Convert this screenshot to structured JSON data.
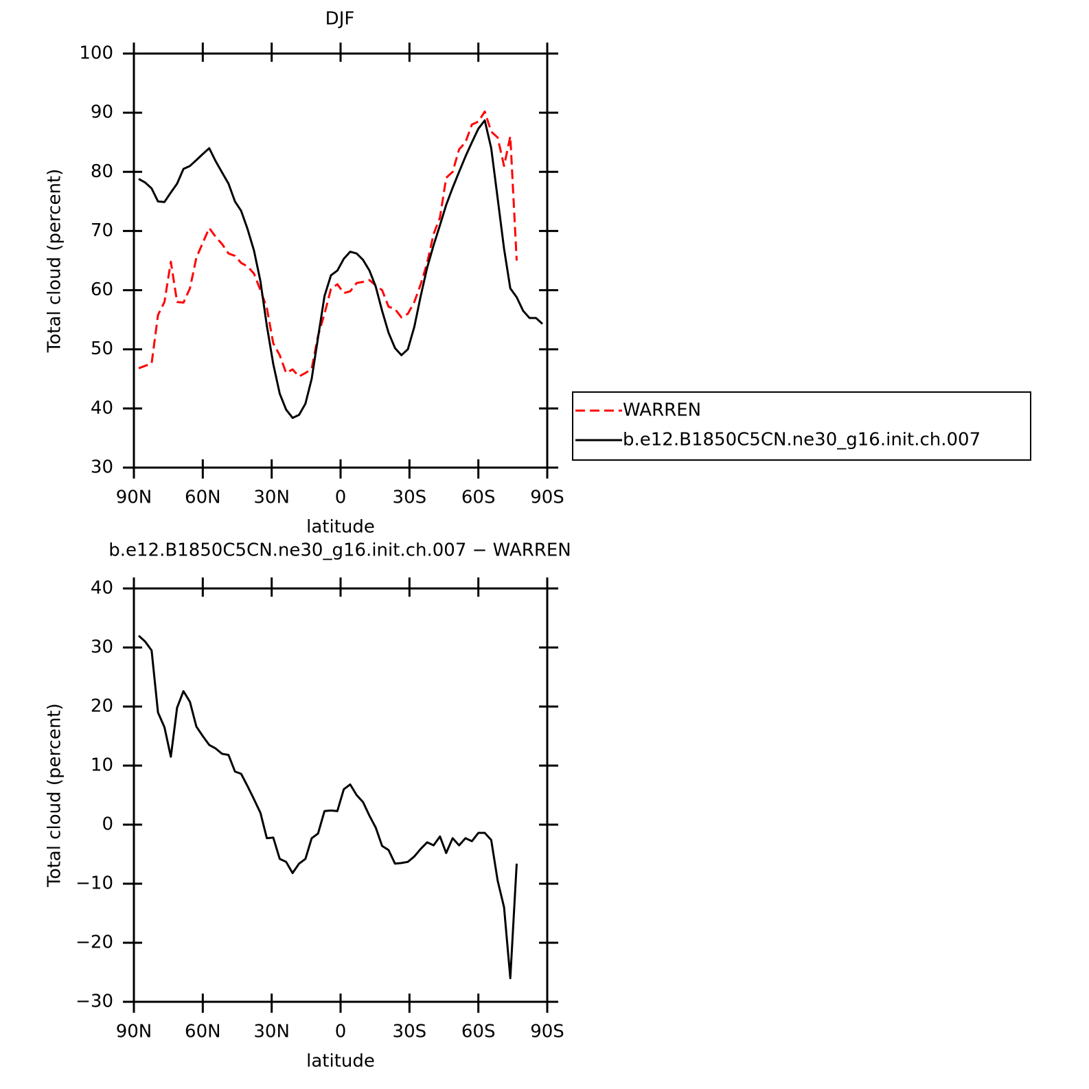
{
  "chart_data": [
    {
      "type": "line",
      "title": "DJF",
      "xlabel": "latitude",
      "ylabel": "Total cloud (percent)",
      "x": [
        87.9,
        85.1,
        82.3,
        79.5,
        76.7,
        73.9,
        71.2,
        68.4,
        65.6,
        62.8,
        60.0,
        57.2,
        54.4,
        51.6,
        48.8,
        46.0,
        43.3,
        40.5,
        37.7,
        34.9,
        32.1,
        29.3,
        26.5,
        23.7,
        20.9,
        18.1,
        15.3,
        12.6,
        9.8,
        7.0,
        4.2,
        1.4,
        -1.4,
        -4.2,
        -7.0,
        -9.8,
        -12.6,
        -15.3,
        -18.1,
        -20.9,
        -23.7,
        -26.5,
        -29.3,
        -32.1,
        -34.9,
        -37.7,
        -40.5,
        -43.3,
        -46.0,
        -48.8,
        -51.6,
        -54.4,
        -57.2,
        -60.0,
        -62.8,
        -65.6,
        -68.4,
        -71.2,
        -73.9,
        -76.7,
        -79.5,
        -82.3,
        -85.1,
        -87.9
      ],
      "series": [
        {
          "name": "WARREN",
          "color": "#ff0000",
          "dash": true,
          "values": [
            46.8,
            47.2,
            47.6,
            55.8,
            58,
            64.8,
            58,
            57.9,
            60.3,
            65.5,
            68,
            70.5,
            69,
            67.8,
            66.2,
            65.8,
            64.6,
            64,
            62.8,
            60,
            57,
            51,
            49,
            46,
            46.6,
            45.4,
            46,
            46.7,
            52.3,
            56,
            60.2,
            61,
            59.5,
            59.8,
            61.2,
            61.4,
            61.7,
            60.8,
            60,
            57.2,
            56.8,
            55.4,
            56,
            58,
            61,
            64.6,
            69.5,
            72.3,
            79,
            80,
            83.8,
            85,
            88,
            88.5,
            90.2,
            86.8,
            85.8,
            81,
            86,
            65,
            null,
            null,
            null,
            null
          ]
        },
        {
          "name": "b.e12.B1850C5CN.ne30_g16.init.ch.007",
          "color": "#000000",
          "dash": false,
          "values": [
            78.8,
            78.2,
            77.2,
            75,
            74.9,
            76.5,
            78,
            80.5,
            81,
            82,
            83,
            84,
            81.8,
            79.9,
            78,
            75,
            73.4,
            70.3,
            66.7,
            61.5,
            54,
            47.5,
            42.5,
            39.8,
            38.4,
            38.9,
            40.8,
            45,
            52,
            59,
            62.5,
            63.3,
            65.3,
            66.5,
            66.2,
            65.1,
            63.3,
            60.6,
            56.5,
            52.8,
            50.2,
            49,
            50,
            53.8,
            59,
            63.8,
            67.6,
            71,
            74.4,
            77.3,
            80,
            82.6,
            85,
            87.3,
            88.7,
            84,
            75.5,
            67,
            60.3,
            58.8,
            56.5,
            55.3,
            55.3,
            54.3
          ]
        }
      ],
      "xlim": [
        90,
        -90
      ],
      "xticks": [
        {
          "value": 90,
          "label": "90N"
        },
        {
          "value": 60,
          "label": "60N"
        },
        {
          "value": 30,
          "label": "30N"
        },
        0,
        {
          "value": -30,
          "label": "30S"
        },
        {
          "value": -60,
          "label": "60S"
        },
        {
          "value": -90,
          "label": "90S"
        }
      ],
      "ylim": [
        30,
        100
      ],
      "yticks": [
        30,
        40,
        50,
        60,
        70,
        80,
        90,
        100
      ],
      "legend": "right"
    },
    {
      "type": "line",
      "title": "b.e12.B1850C5CN.ne30_g16.init.ch.007 − WARREN",
      "xlabel": "latitude",
      "ylabel": "Total cloud (percent)",
      "x": [
        87.9,
        85.1,
        82.3,
        79.5,
        76.7,
        73.9,
        71.2,
        68.4,
        65.6,
        62.8,
        60.0,
        57.2,
        54.4,
        51.6,
        48.8,
        46.0,
        43.3,
        40.5,
        37.7,
        34.9,
        32.1,
        29.3,
        26.5,
        23.7,
        20.9,
        18.1,
        15.3,
        12.6,
        9.8,
        7.0,
        4.2,
        1.4,
        -1.4,
        -4.2,
        -7.0,
        -9.8,
        -12.6,
        -15.3,
        -18.1,
        -20.9,
        -23.7,
        -26.5,
        -29.3,
        -32.1,
        -34.9,
        -37.7,
        -40.5,
        -43.3,
        -46.0,
        -48.8,
        -51.6,
        -54.4,
        -57.2,
        -60.0,
        -62.8,
        -65.6,
        -68.4,
        -71.2,
        -73.9,
        -76.7,
        -79.5,
        -82.3,
        -85.1,
        -87.9
      ],
      "color": "#000000",
      "values": [
        32,
        31,
        29.5,
        19,
        16.5,
        11.5,
        19.8,
        22.6,
        20.8,
        16.6,
        15,
        13.5,
        12.9,
        12,
        11.8,
        9,
        8.6,
        6.5,
        4.3,
        2,
        -2.3,
        -2.2,
        -5.8,
        -6.3,
        -8.2,
        -6.6,
        -5.8,
        -2.3,
        -1.5,
        2.3,
        2.4,
        2.3,
        6,
        6.8,
        5,
        3.8,
        1.5,
        -0.5,
        -3.6,
        -4.3,
        -6.6,
        -6.5,
        -6.3,
        -5.4,
        -4.1,
        -3,
        -3.5,
        -2,
        -4.8,
        -2.3,
        -3.5,
        -2.3,
        -2.8,
        -1.4,
        -1.4,
        -2.6,
        -9.5,
        -14,
        -26,
        -6.6,
        null,
        null,
        null,
        null
      ],
      "xlim": [
        90,
        -90
      ],
      "xticks": [
        {
          "value": 90,
          "label": "90N"
        },
        {
          "value": 60,
          "label": "60N"
        },
        {
          "value": 30,
          "label": "30N"
        },
        0,
        {
          "value": -30,
          "label": "30S"
        },
        {
          "value": -60,
          "label": "60S"
        },
        {
          "value": -90,
          "label": "90S"
        }
      ],
      "ylim": [
        -30,
        40
      ],
      "yticks": [
        {
          "value": -30,
          "label": "−30"
        },
        {
          "value": -20,
          "label": "−20"
        },
        {
          "value": -10,
          "label": "−10"
        },
        0,
        10,
        20,
        30,
        40
      ]
    }
  ]
}
